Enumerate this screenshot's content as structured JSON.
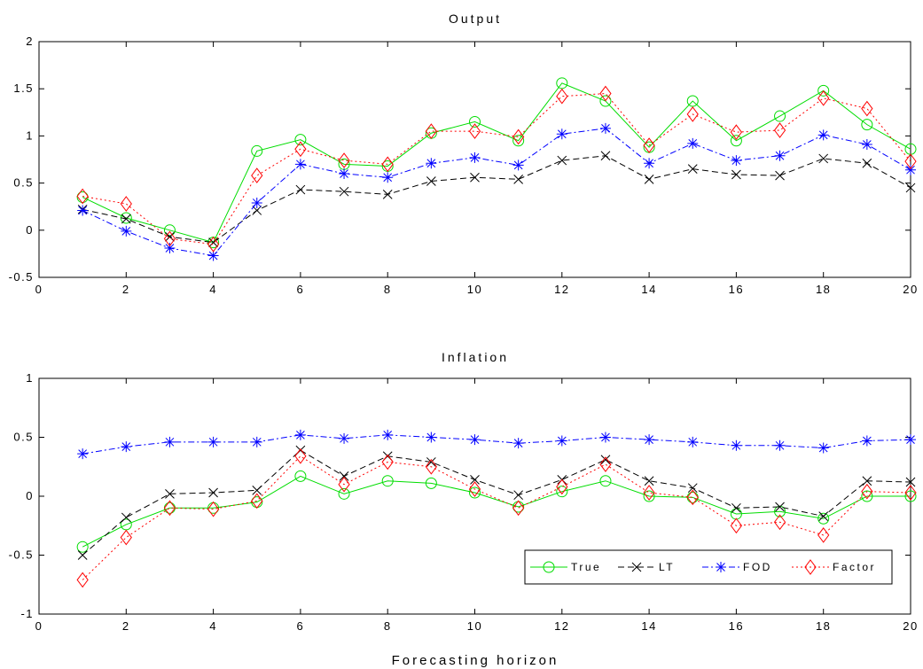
{
  "chart_data": [
    {
      "type": "line",
      "title": "Output",
      "xlabel": "",
      "ylabel": "",
      "xlim": [
        0,
        20
      ],
      "ylim": [
        -0.5,
        2
      ],
      "x_ticks": [
        "0",
        "2",
        "4",
        "6",
        "8",
        "10",
        "12",
        "14",
        "16",
        "18",
        "20"
      ],
      "y_ticks": [
        "-0.5",
        "0",
        "0.5",
        "1",
        "1.5",
        "2"
      ],
      "x": [
        1,
        2,
        3,
        4,
        5,
        6,
        7,
        8,
        9,
        10,
        11,
        12,
        13,
        14,
        15,
        16,
        17,
        18,
        19,
        20
      ],
      "grid": false,
      "series": [
        {
          "name": "True",
          "color": "#00dd00",
          "marker": "circle",
          "line": "solid",
          "values": [
            0.35,
            0.13,
            0.0,
            -0.13,
            0.84,
            0.96,
            0.7,
            0.68,
            1.03,
            1.15,
            0.95,
            1.56,
            1.37,
            0.88,
            1.37,
            0.95,
            1.21,
            1.48,
            1.12,
            0.86
          ]
        },
        {
          "name": "LT",
          "color": "#000000",
          "marker": "x",
          "line": "dashed",
          "values": [
            0.22,
            0.12,
            -0.07,
            -0.13,
            0.21,
            0.43,
            0.41,
            0.38,
            0.52,
            0.56,
            0.54,
            0.74,
            0.79,
            0.54,
            0.65,
            0.59,
            0.58,
            0.76,
            0.71,
            0.45
          ]
        },
        {
          "name": "FOD",
          "color": "#0000ff",
          "marker": "star",
          "line": "dashdot",
          "values": [
            0.21,
            -0.01,
            -0.19,
            -0.27,
            0.29,
            0.7,
            0.6,
            0.56,
            0.71,
            0.77,
            0.69,
            1.02,
            1.08,
            0.71,
            0.92,
            0.74,
            0.79,
            1.01,
            0.91,
            0.64
          ]
        },
        {
          "name": "Factor",
          "color": "#ff0000",
          "marker": "diamond",
          "line": "dotted",
          "values": [
            0.36,
            0.28,
            -0.09,
            -0.15,
            0.58,
            0.86,
            0.74,
            0.7,
            1.05,
            1.05,
            0.99,
            1.42,
            1.45,
            0.9,
            1.23,
            1.04,
            1.06,
            1.4,
            1.29,
            0.73
          ]
        }
      ]
    },
    {
      "type": "line",
      "title": "Inflation",
      "xlabel": "Forecasting horizon",
      "ylabel": "",
      "xlim": [
        0,
        20
      ],
      "ylim": [
        -1,
        1
      ],
      "x_ticks": [
        "0",
        "2",
        "4",
        "6",
        "8",
        "10",
        "12",
        "14",
        "16",
        "18",
        "20"
      ],
      "y_ticks": [
        "-1",
        "-0.5",
        "0",
        "0.5",
        "1"
      ],
      "x": [
        1,
        2,
        3,
        4,
        5,
        6,
        7,
        8,
        9,
        10,
        11,
        12,
        13,
        14,
        15,
        16,
        17,
        18,
        19,
        20
      ],
      "grid": false,
      "legend": {
        "position": "bottom-right",
        "orientation": "horizontal"
      },
      "series": [
        {
          "name": "True",
          "color": "#00dd00",
          "marker": "circle",
          "line": "solid",
          "values": [
            -0.43,
            -0.24,
            -0.1,
            -0.1,
            -0.05,
            0.17,
            0.02,
            0.13,
            0.11,
            0.03,
            -0.09,
            0.04,
            0.13,
            0.0,
            -0.01,
            -0.15,
            -0.13,
            -0.19,
            0.0,
            0.0
          ]
        },
        {
          "name": "LT",
          "color": "#000000",
          "marker": "x",
          "line": "dashed",
          "values": [
            -0.5,
            -0.18,
            0.02,
            0.03,
            0.05,
            0.39,
            0.17,
            0.34,
            0.29,
            0.14,
            0.01,
            0.14,
            0.31,
            0.13,
            0.07,
            -0.1,
            -0.09,
            -0.17,
            0.13,
            0.12
          ]
        },
        {
          "name": "FOD",
          "color": "#0000ff",
          "marker": "star",
          "line": "dashdot",
          "values": [
            0.36,
            0.42,
            0.46,
            0.46,
            0.46,
            0.52,
            0.49,
            0.52,
            0.5,
            0.48,
            0.45,
            0.47,
            0.5,
            0.48,
            0.46,
            0.43,
            0.43,
            0.41,
            0.47,
            0.48
          ]
        },
        {
          "name": "Factor",
          "color": "#ff0000",
          "marker": "diamond",
          "line": "dotted",
          "values": [
            -0.71,
            -0.35,
            -0.1,
            -0.11,
            -0.04,
            0.34,
            0.1,
            0.29,
            0.25,
            0.06,
            -0.1,
            0.08,
            0.27,
            0.03,
            -0.01,
            -0.25,
            -0.22,
            -0.33,
            0.04,
            0.03
          ]
        }
      ]
    }
  ]
}
